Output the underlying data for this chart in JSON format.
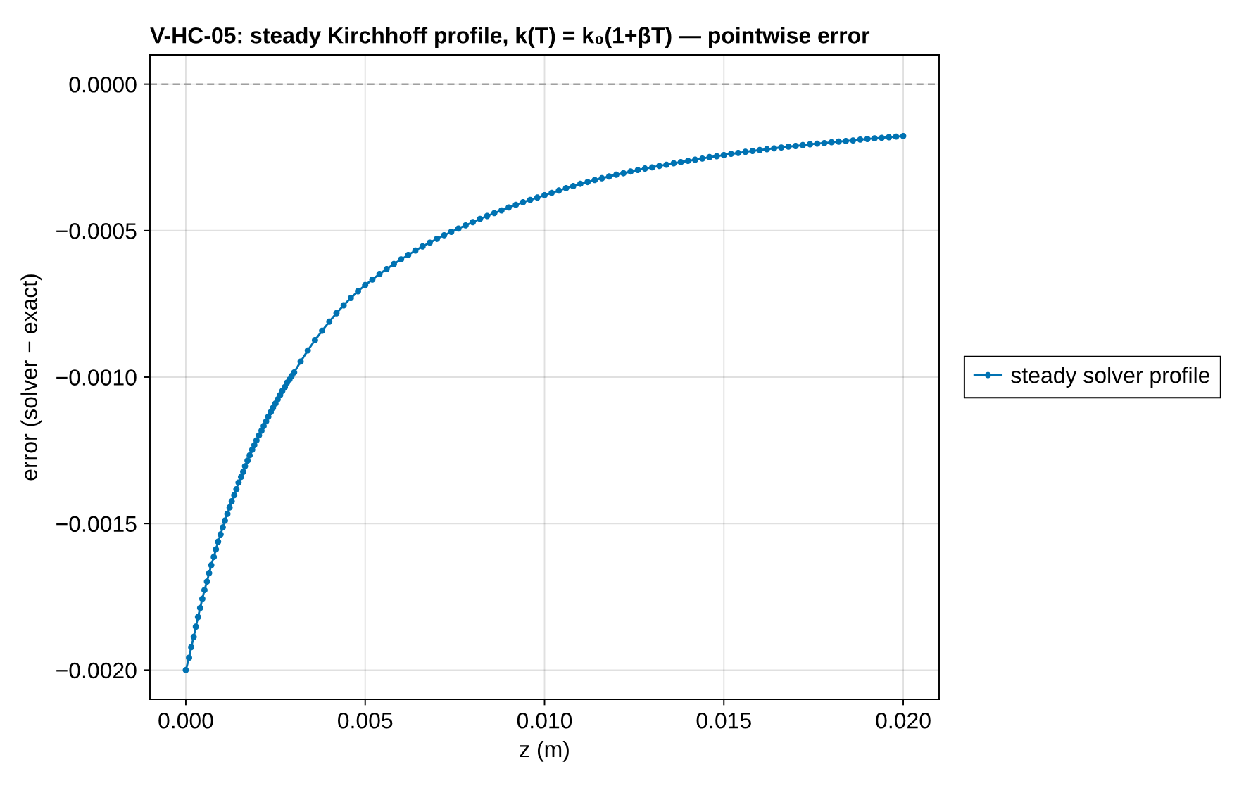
{
  "chart_data": {
    "type": "line",
    "title": "V-HC-05: steady Kirchhoff profile, k(T) = k₀(1+βT) — pointwise error",
    "xlabel": "z (m)",
    "ylabel": "error (solver − exact)",
    "x": [
      0,
      9e-05,
      0.00015,
      0.00022,
      0.00028,
      0.00034,
      0.0004,
      0.00046,
      0.00052,
      0.00059,
      0.00065,
      0.00071,
      0.00078,
      0.00084,
      0.0009,
      0.00097,
      0.00103,
      0.00109,
      0.00116,
      0.00122,
      0.00128,
      0.00135,
      0.00141,
      0.00147,
      0.00154,
      0.0016,
      0.00165,
      0.00172,
      0.00178,
      0.00185,
      0.00191,
      0.00197,
      0.00204,
      0.00211,
      0.00217,
      0.00224,
      0.0023,
      0.00237,
      0.00243,
      0.0025,
      0.00256,
      0.00263,
      0.00269,
      0.00276,
      0.00282,
      0.00289,
      0.00295,
      0.00302,
      0.0032,
      0.0034,
      0.0036,
      0.0038,
      0.004,
      0.0042,
      0.0044,
      0.0046,
      0.0048,
      0.005,
      0.0052,
      0.0054,
      0.0056,
      0.0058,
      0.006,
      0.0062,
      0.0064,
      0.0066,
      0.0068,
      0.007,
      0.0072,
      0.0074,
      0.0076,
      0.0078,
      0.008,
      0.0082,
      0.0084,
      0.0086,
      0.0088,
      0.009,
      0.0092,
      0.0094,
      0.0096,
      0.0098,
      0.01,
      0.0102,
      0.0104,
      0.0106,
      0.0108,
      0.011,
      0.0112,
      0.0114,
      0.0116,
      0.0118,
      0.012,
      0.0122,
      0.0124,
      0.0126,
      0.0128,
      0.013,
      0.0132,
      0.0134,
      0.0136,
      0.0138,
      0.014,
      0.0142,
      0.0144,
      0.0146,
      0.0148,
      0.015,
      0.0152,
      0.0154,
      0.0156,
      0.0158,
      0.016,
      0.0162,
      0.0164,
      0.0166,
      0.0168,
      0.017,
      0.0172,
      0.0174,
      0.0176,
      0.0178,
      0.018,
      0.0182,
      0.0184,
      0.0186,
      0.0188,
      0.019,
      0.0192,
      0.0194,
      0.0196,
      0.0198,
      0.02
    ],
    "series": [
      {
        "name": "steady solver profile",
        "color": "#0072b2",
        "values": [
          -0.002,
          -0.001958,
          -0.001922,
          -0.001887,
          -0.001852,
          -0.001819,
          -0.001788,
          -0.001757,
          -0.001727,
          -0.001698,
          -0.001669,
          -0.001642,
          -0.001614,
          -0.001588,
          -0.001562,
          -0.001537,
          -0.001513,
          -0.00149,
          -0.001467,
          -0.001445,
          -0.001424,
          -0.001403,
          -0.001383,
          -0.00136,
          -0.001341,
          -0.001323,
          -0.001304,
          -0.001285,
          -0.001267,
          -0.001248,
          -0.001232,
          -0.001216,
          -0.001199,
          -0.001183,
          -0.001167,
          -0.001151,
          -0.001135,
          -0.001119,
          -0.001105,
          -0.00109,
          -0.001076,
          -0.001061,
          -0.001047,
          -0.001034,
          -0.001019,
          -0.001008,
          -0.000996,
          -0.000984,
          -0.000947,
          -0.000909,
          -0.000874,
          -0.000842,
          -0.000811,
          -0.000782,
          -0.000755,
          -0.00073,
          -0.000707,
          -0.000686,
          -0.000667,
          -0.000648,
          -0.000631,
          -0.000614,
          -0.000598,
          -0.000583,
          -0.000568,
          -0.000554,
          -0.000541,
          -0.000528,
          -0.000516,
          -0.000504,
          -0.000493,
          -0.000482,
          -0.000471,
          -0.00046,
          -0.00045,
          -0.00044,
          -0.000431,
          -0.000421,
          -0.000412,
          -0.000403,
          -0.000395,
          -0.000387,
          -0.000379,
          -0.000371,
          -0.000363,
          -0.000355,
          -0.000348,
          -0.00034,
          -0.000334,
          -0.000327,
          -0.000321,
          -0.000315,
          -0.000309,
          -0.000304,
          -0.000298,
          -0.000293,
          -0.000288,
          -0.000284,
          -0.000279,
          -0.000275,
          -0.00027,
          -0.000266,
          -0.000262,
          -0.000258,
          -0.000254,
          -0.000249,
          -0.000246,
          -0.000242,
          -0.000238,
          -0.000235,
          -0.000231,
          -0.000228,
          -0.000225,
          -0.000222,
          -0.000219,
          -0.000216,
          -0.000213,
          -0.000211,
          -0.000208,
          -0.000205,
          -0.000203,
          -0.000201,
          -0.000198,
          -0.000196,
          -0.000194,
          -0.000192,
          -0.000189,
          -0.000187,
          -0.000185,
          -0.000183,
          -0.000181,
          -0.000179,
          -0.000177
        ]
      }
    ],
    "xlim": [
      -0.001,
      0.021
    ],
    "ylim": [
      -0.0021,
      0.0001
    ],
    "xticks": [
      {
        "value": 0,
        "label": "0.000"
      },
      {
        "value": 0.005,
        "label": "0.005"
      },
      {
        "value": 0.01,
        "label": "0.010"
      },
      {
        "value": 0.015,
        "label": "0.015"
      },
      {
        "value": 0.02,
        "label": "0.020"
      }
    ],
    "yticks": [
      {
        "value": -0.002,
        "label": "−0.0020"
      },
      {
        "value": -0.0015,
        "label": "−0.0015"
      },
      {
        "value": -0.001,
        "label": "−0.0010"
      },
      {
        "value": -0.0005,
        "label": "−0.0005"
      },
      {
        "value": 0,
        "label": "0.0000"
      }
    ],
    "ref_lines": [
      {
        "axis": "y",
        "value": 0,
        "color": "#a0a0a0",
        "line_style": "dashed"
      }
    ],
    "grid": true,
    "legend": "right",
    "marker": "circle",
    "line_style": "solid"
  }
}
